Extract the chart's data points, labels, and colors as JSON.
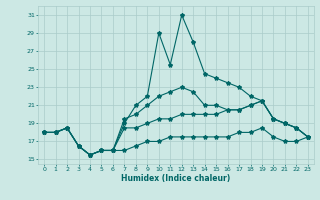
{
  "title": "",
  "xlabel": "Humidex (Indice chaleur)",
  "ylabel": "",
  "xlim": [
    -0.5,
    23.5
  ],
  "ylim": [
    14.5,
    32
  ],
  "yticks": [
    15,
    17,
    19,
    21,
    23,
    25,
    27,
    29,
    31
  ],
  "xticks": [
    0,
    1,
    2,
    3,
    4,
    5,
    6,
    7,
    8,
    9,
    10,
    11,
    12,
    13,
    14,
    15,
    16,
    17,
    18,
    19,
    20,
    21,
    22,
    23
  ],
  "bg_color": "#cce8e4",
  "grid_color": "#aaccca",
  "line_color": "#006666",
  "series": [
    {
      "x": [
        0,
        1,
        2,
        3,
        4,
        5,
        6,
        7,
        8,
        9,
        10,
        11,
        12,
        13,
        14,
        15,
        16,
        17,
        18,
        19,
        20,
        21,
        22,
        23
      ],
      "y": [
        18,
        18,
        18.5,
        16.5,
        15.5,
        16,
        16,
        19,
        21,
        22,
        29,
        25.5,
        31,
        28,
        24.5,
        24,
        23.5,
        23,
        22,
        21.5,
        19.5,
        19,
        18.5,
        17.5
      ]
    },
    {
      "x": [
        0,
        1,
        2,
        3,
        4,
        5,
        6,
        7,
        8,
        9,
        10,
        11,
        12,
        13,
        14,
        15,
        16,
        17,
        18,
        19,
        20,
        21,
        22,
        23
      ],
      "y": [
        18,
        18,
        18.5,
        16.5,
        15.5,
        16,
        16,
        19.5,
        20,
        21,
        22,
        22.5,
        23,
        22.5,
        21,
        21,
        20.5,
        20.5,
        21,
        21.5,
        19.5,
        19,
        18.5,
        17.5
      ]
    },
    {
      "x": [
        0,
        1,
        2,
        3,
        4,
        5,
        6,
        7,
        8,
        9,
        10,
        11,
        12,
        13,
        14,
        15,
        16,
        17,
        18,
        19,
        20,
        21,
        22,
        23
      ],
      "y": [
        18,
        18,
        18.5,
        16.5,
        15.5,
        16,
        16,
        18.5,
        18.5,
        19,
        19.5,
        19.5,
        20,
        20,
        20,
        20,
        20.5,
        20.5,
        21,
        21.5,
        19.5,
        19,
        18.5,
        17.5
      ]
    },
    {
      "x": [
        0,
        1,
        2,
        3,
        4,
        5,
        6,
        7,
        8,
        9,
        10,
        11,
        12,
        13,
        14,
        15,
        16,
        17,
        18,
        19,
        20,
        21,
        22,
        23
      ],
      "y": [
        18,
        18,
        18.5,
        16.5,
        15.5,
        16,
        16,
        16,
        16.5,
        17,
        17,
        17.5,
        17.5,
        17.5,
        17.5,
        17.5,
        17.5,
        18,
        18,
        18.5,
        17.5,
        17,
        17,
        17.5
      ]
    }
  ]
}
